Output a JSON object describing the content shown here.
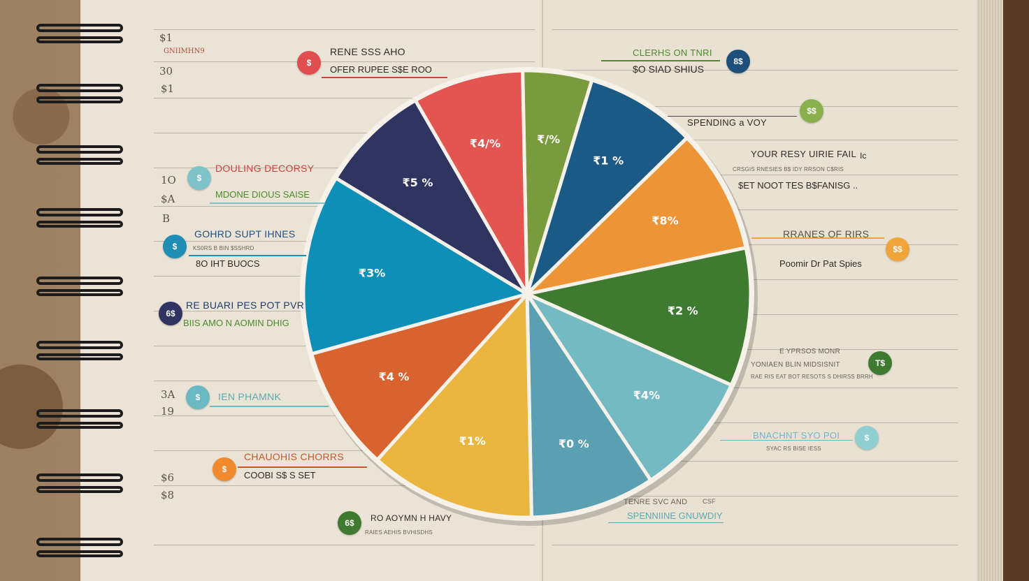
{
  "chart_data": {
    "type": "pie",
    "title": "",
    "slices": [
      {
        "label": "₹/%",
        "value": 5,
        "color": "#7a9a3e"
      },
      {
        "label": "₹1 %",
        "value": 8,
        "color": "#1c5a86"
      },
      {
        "label": "₹8%",
        "value": 9,
        "color": "#ec9436"
      },
      {
        "label": "₹2 %",
        "value": 10,
        "color": "#3e7a30"
      },
      {
        "label": "₹4%",
        "value": 9,
        "color": "#74bac2"
      },
      {
        "label": "₹0 %",
        "value": 9,
        "color": "#5a9fb2"
      },
      {
        "label": "₹1%",
        "value": 12,
        "color": "#ebb640"
      },
      {
        "label": "₹4 %",
        "value": 9,
        "color": "#d8632e"
      },
      {
        "label": "₹3%",
        "value": 13,
        "color": "#0e8fb8"
      },
      {
        "label": "₹5 %",
        "value": 8,
        "color": "#2f3460"
      },
      {
        "label": "₹4/%",
        "value": 8,
        "color": "#e25551"
      }
    ]
  },
  "annotations_left": [
    {
      "id": "a1",
      "title": "RENE SSS AHO",
      "sub": "OFER RUPEE S$E ROO",
      "badge": "$",
      "title_color": "#2f2a25",
      "badge_color": "#e04e50"
    },
    {
      "id": "a2",
      "title": "DOULING DECORSY",
      "sub": "MDONE DIOUS SAISE",
      "badge": "$",
      "title_color": "#c9433f",
      "sub_color": "#4c8a2c",
      "badge_color": "#7fc2c9"
    },
    {
      "id": "a3",
      "title": "GOHRD SUPT IHNES",
      "tiny": "KS0RS B BIN $SSHRD",
      "sub": "8O IHT BUOCS",
      "badge": "$",
      "title_color": "#1d4f86",
      "badge_color": "#1e8eb4"
    },
    {
      "id": "a4",
      "title": "RE BUARI PES POT PVR",
      "sub": "BIIS AMO N AOMIN DHIG",
      "badge": "6$",
      "title_color": "#1d3c6b",
      "sub_color": "#4c8a2c",
      "badge_color": "#2f3460"
    },
    {
      "id": "a5",
      "title": "IEN PHAMNK",
      "badge": "$",
      "title_color": "#5aa9b3",
      "badge_color": "#6ab8c2"
    },
    {
      "id": "a6",
      "title": "CHAUOHIS CHORRS",
      "sub": "COOBI S$ S SET",
      "badge": "$",
      "title_color": "#c8582a",
      "badge_color": "#f08a2d"
    },
    {
      "id": "a7",
      "title": "RO AOYMN H HAVY",
      "tiny": "RAIES AEHIS BVHISDHS",
      "badge": "6$",
      "title_color": "#2f2a25",
      "badge_color": "#3e7a30"
    }
  ],
  "annotations_right": [
    {
      "id": "b1",
      "title": "CLERHS ON TNRI",
      "sub": "$O SIAD SHIUS",
      "badge": "8$",
      "title_color": "#4c8a2c",
      "badge_color": "#1c4f7a"
    },
    {
      "id": "b2",
      "title": "SPENDING a VOY",
      "badge": "$$",
      "badge_color": "#8ab04d"
    },
    {
      "id": "b3",
      "title": "YOUR RESY UIRIE FAIL",
      "tiny": "CRSGIS RNESIES B$ IDY RRSON C$RIS",
      "sub": "$ET NOOT TES B$FANISG ..",
      "badge": "Ic"
    },
    {
      "id": "b4",
      "title": "RRANES OF RIRS",
      "sub": "Poomir Dr Pat Spies",
      "badge": "$$",
      "badge_color": "#f0a43a"
    },
    {
      "id": "b5",
      "title": "E YPRSOS MONR",
      "tiny": "YONIAEN BLIN MIDSISNIT",
      "sub": "RAE RIS EAT BOT RESOTS S DHIRSS BRRH",
      "badge": "T$",
      "badge_color": "#3e7a30"
    },
    {
      "id": "b6",
      "title": "BNACHNT SYO POI",
      "tiny": "SYAC RS BISE IESS",
      "badge": "$",
      "title_color": "#6ab8c2",
      "badge_color": "#8fcfd2"
    },
    {
      "id": "b7",
      "title": "TENRE SVC AND",
      "sub": "SPENNIINE GNUWDIY",
      "extra": "CSF",
      "sub_color": "#5aa9b3"
    }
  ],
  "margin_numbers": [
    "$1",
    "GNIIMHN9",
    "30",
    "$1",
    "1O",
    "$A",
    "B",
    "3A",
    "19",
    "$6",
    "$8"
  ]
}
